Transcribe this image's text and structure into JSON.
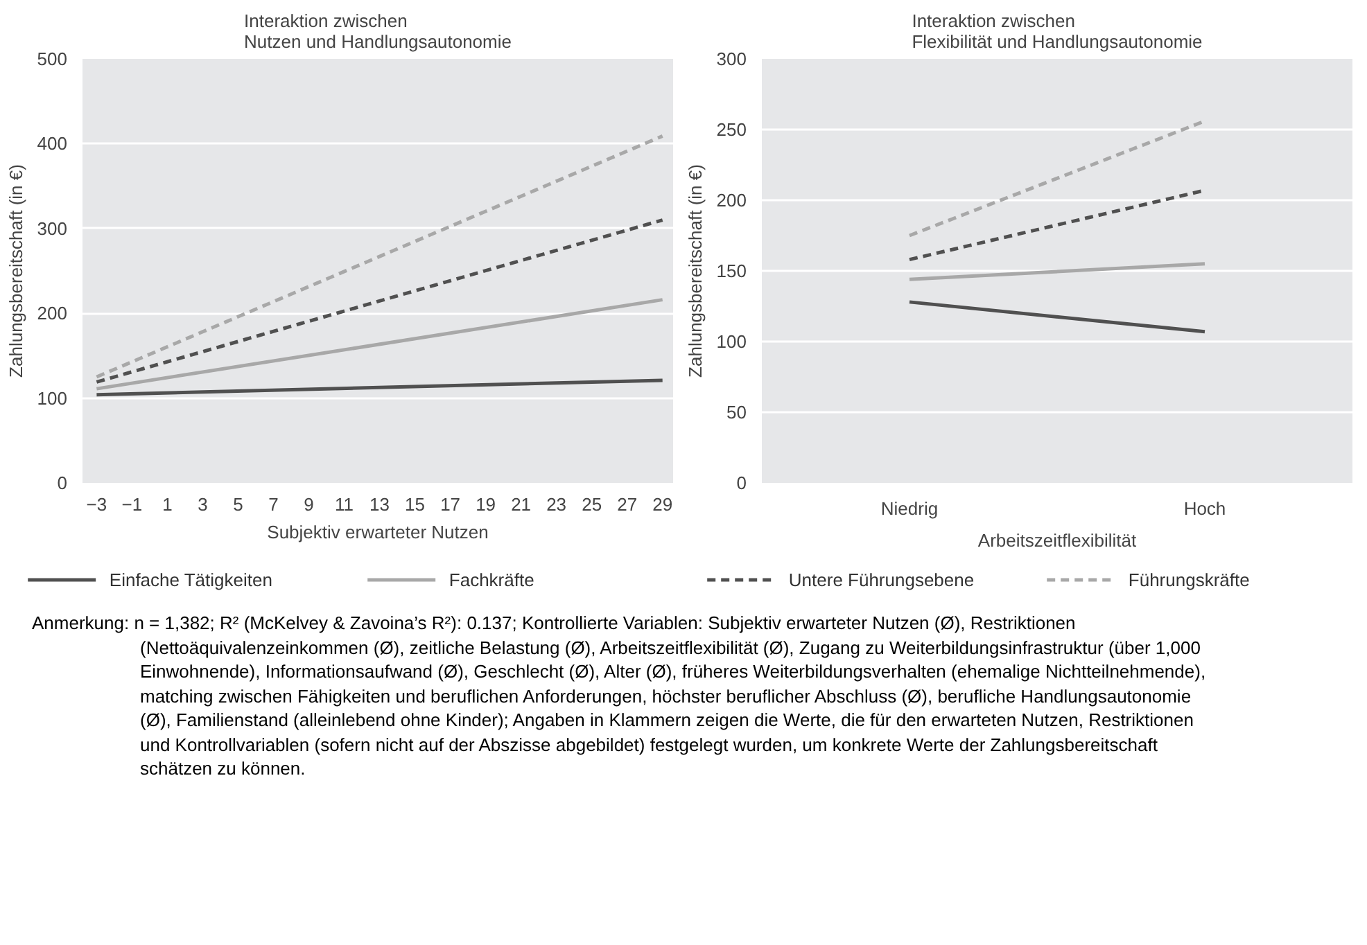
{
  "chart_data": [
    {
      "type": "line",
      "title": "Interaktion zwischen\nNutzen und Handlungsautonomie",
      "xlabel": "Subjektiv erwarteter Nutzen",
      "ylabel": "Zahlungsbereitschaft (in €)",
      "x": [
        -3,
        29
      ],
      "xlim": [
        -3.8,
        29.6
      ],
      "xticks": [
        {
          "value": -3,
          "label": "−3"
        },
        {
          "value": -1,
          "label": "−1"
        },
        1,
        3,
        5,
        7,
        9,
        11,
        13,
        15,
        17,
        19,
        21,
        23,
        25,
        27,
        29
      ],
      "ylim": [
        0,
        500
      ],
      "yticks": [
        0,
        100,
        200,
        300,
        400,
        500
      ],
      "grid": "y",
      "legend": "bottom",
      "series": [
        {
          "name": "Einfache Tätigkeiten",
          "color": "#505050",
          "line_style": "solid",
          "values": [
            104,
            121
          ]
        },
        {
          "name": "Fachkräfte",
          "color": "#a8a8a8",
          "line_style": "solid",
          "values": [
            111,
            216
          ]
        },
        {
          "name": "Untere Führungsebene",
          "color": "#505050",
          "line_style": "dashed",
          "values": [
            119,
            310
          ]
        },
        {
          "name": "Führungskräfte",
          "color": "#a8a8a8",
          "line_style": "dashed",
          "values": [
            125,
            409
          ]
        }
      ],
      "annotations": [
        "Anmerkung: n = 1,382; R² (McKelvey & Zavoina’s R²): 0.137; Kontrollierte Variablen: Subjektiv erwarteter Nutzen (Ø), Restriktionen (Nettoäquivalenzeinkommen (Ø), zeitliche Belastung (Ø), Arbeitszeitflexibilität (Ø), Zugang zu Weiterbildungsinfrastruktur (über 1,000 Einwohnende), Informationsaufwand (Ø), Geschlecht (Ø), Alter (Ø), früheres Weiterbildungsverhalten (ehemalige Nichtteilnehmende), matching zwischen Fähigkeiten und beruflichen Anforderungen, höchster beruflicher Abschluss (Ø), berufliche Handlungsautonomie (Ø), Familienstand (alleinlebend ohne Kinder); Angaben in Klammern zeigen die Werte, die für den erwarteten Nutzen, Restriktionen und Kontrollvariablen (sofern nicht auf der Abszisse abgebildet) festgelegt wurden, um konkrete Werte der Zahlungsbereitschaft schätzen zu können."
      ]
    },
    {
      "type": "line",
      "title": "Interaktion zwischen\nFlexibilität und Handlungsautonomie",
      "xlabel": "Arbeitszeitflexibilität",
      "ylabel": "Zahlungsbereitschaft (in €)",
      "categories": [
        "Niedrig",
        "Hoch"
      ],
      "ylim": [
        0,
        300
      ],
      "yticks": [
        0,
        50,
        100,
        150,
        200,
        250,
        300
      ],
      "grid": "y",
      "series": [
        {
          "color": "#505050",
          "line_style": "solid",
          "values": [
            128,
            107
          ]
        },
        {
          "color": "#a8a8a8",
          "line_style": "solid",
          "values": [
            144,
            155
          ]
        },
        {
          "color": "#505050",
          "line_style": "dashed",
          "values": [
            158,
            207
          ]
        },
        {
          "color": "#a8a8a8",
          "line_style": "dashed",
          "values": [
            175,
            256
          ]
        }
      ]
    }
  ]
}
